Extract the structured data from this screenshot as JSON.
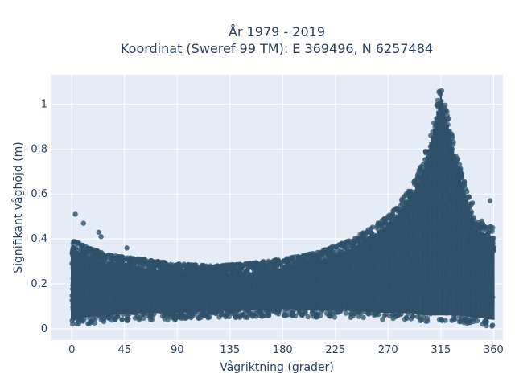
{
  "chart_data": {
    "type": "scatter",
    "title": [
      "År 1979 - 2019",
      "Koordinat (Sweref 99 TM): E 369496, N 6257484"
    ],
    "xlabel": "Vågriktning (grader)",
    "ylabel": "Signifikant våghöjd (m)",
    "xlim": [
      -18,
      368
    ],
    "ylim": [
      -0.05,
      1.13
    ],
    "x_ticks": [
      0,
      45,
      90,
      135,
      180,
      225,
      270,
      315,
      360
    ],
    "x_tick_labels": [
      "0",
      "45",
      "90",
      "135",
      "180",
      "225",
      "270",
      "315",
      "360"
    ],
    "y_ticks": [
      0,
      0.2,
      0.4,
      0.6,
      0.8,
      1
    ],
    "y_tick_labels": [
      "0",
      "0,2",
      "0,4",
      "0,6",
      "0,8",
      "1"
    ],
    "grid": true,
    "marker_color": "#2e5169",
    "plot_background": "#e5ecf6",
    "envelope": {
      "x": [
        0,
        10,
        30,
        60,
        90,
        120,
        150,
        180,
        210,
        240,
        270,
        290,
        300,
        310,
        315,
        320,
        330,
        345,
        360
      ],
      "y_low": [
        0.01,
        0.02,
        0.03,
        0.04,
        0.04,
        0.05,
        0.05,
        0.06,
        0.05,
        0.05,
        0.04,
        0.04,
        0.03,
        0.03,
        0.03,
        0.03,
        0.03,
        0.02,
        0.01
      ],
      "y_high": [
        0.4,
        0.37,
        0.33,
        0.31,
        0.29,
        0.28,
        0.29,
        0.31,
        0.34,
        0.4,
        0.5,
        0.63,
        0.75,
        0.95,
        1.1,
        0.97,
        0.75,
        0.48,
        0.45
      ]
    },
    "outliers": [
      {
        "x": 3,
        "y": 0.51
      },
      {
        "x": 10,
        "y": 0.47
      },
      {
        "x": 23,
        "y": 0.43
      },
      {
        "x": 25,
        "y": 0.41
      },
      {
        "x": 47,
        "y": 0.36
      },
      {
        "x": 302,
        "y": 0.79
      },
      {
        "x": 295,
        "y": 0.63
      },
      {
        "x": 342,
        "y": 0.56
      },
      {
        "x": 357,
        "y": 0.57
      },
      {
        "x": 330,
        "y": 0.44
      },
      {
        "x": 350,
        "y": 0.48
      }
    ]
  }
}
